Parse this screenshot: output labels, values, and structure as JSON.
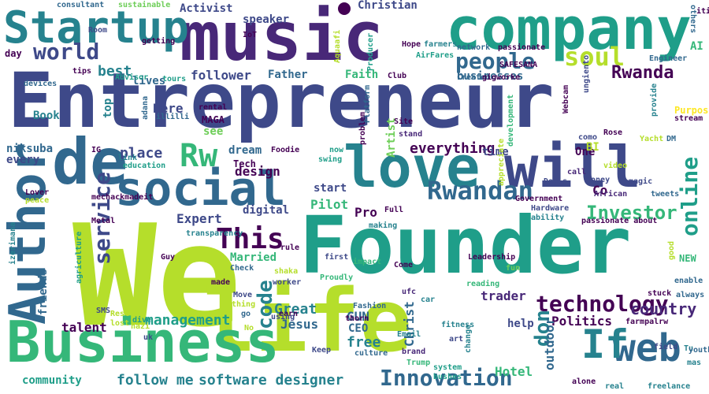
{
  "palette": {
    "dark_purple": "#440154",
    "purple": "#482878",
    "indigo": "#3e4989",
    "blue": "#31688e",
    "teal": "#26828e",
    "teal_green": "#1f9e89",
    "green": "#35b779",
    "light_green": "#6ece58",
    "lime": "#b5de2b",
    "yellow": "#fde725"
  },
  "words": [
    {
      "text": "Entrepreneur",
      "color": "#3e4989"
    },
    {
      "text": "We",
      "color": "#b5de2b"
    },
    {
      "text": "Founder",
      "color": "#1f9e89"
    },
    {
      "text": "music",
      "color": "#482878"
    },
    {
      "text": "company",
      "color": "#1f9e89"
    },
    {
      "text": "life",
      "color": "#b5de2b"
    },
    {
      "text": "Business",
      "color": "#35b779"
    },
    {
      "text": "love",
      "color": "#26828e"
    },
    {
      "text": "will",
      "color": "#3e4989"
    },
    {
      "text": "social",
      "color": "#31688e"
    },
    {
      "text": "de",
      "color": "#31688e"
    },
    {
      "text": "Author",
      "color": "#31688e"
    },
    {
      "text": "Startup",
      "color": "#26828e"
    },
    {
      "text": "web",
      "color": "#31688e"
    },
    {
      "text": "If",
      "color": "#26828e"
    },
    {
      "text": "technology",
      "color": "#440154"
    },
    {
      "text": "Rwandan",
      "color": "#31688e"
    },
    {
      "text": "Innovation",
      "color": "#31688e"
    },
    {
      "text": "Rw",
      "color": "#35b779"
    },
    {
      "text": "This",
      "color": "#440154"
    },
    {
      "text": "people",
      "color": "#31688e"
    },
    {
      "text": "soul",
      "color": "#b5de2b"
    },
    {
      "text": "world",
      "color": "#3e4989"
    },
    {
      "text": "online",
      "color": "#1f9e89"
    },
    {
      "text": "service",
      "color": "#3e4989"
    },
    {
      "text": "code",
      "color": "#26828e"
    },
    {
      "text": "Investor",
      "color": "#35b779"
    },
    {
      "text": "Rwanda",
      "color": "#440154"
    },
    {
      "text": "don",
      "color": "#26828e"
    },
    {
      "text": "management",
      "color": "#1f9e89"
    },
    {
      "text": "country",
      "color": "#482878"
    },
    {
      "text": "follow me",
      "color": "#26828e"
    },
    {
      "text": "software designer",
      "color": "#26828e"
    },
    {
      "text": "Jesus",
      "color": "#31688e"
    },
    {
      "text": "Great",
      "color": "#26828e"
    },
    {
      "text": "everything",
      "color": "#440154"
    },
    {
      "text": "Politics",
      "color": "#440154"
    },
    {
      "text": "Christ",
      "color": "#31688e"
    },
    {
      "text": "free",
      "color": "#26828e"
    },
    {
      "text": "trader",
      "color": "#482878"
    },
    {
      "text": "outdoor",
      "color": "#31688e"
    },
    {
      "text": "Hotel",
      "color": "#35b779"
    },
    {
      "text": "community",
      "color": "#1f9e89"
    },
    {
      "text": "talent",
      "color": "#440154"
    },
    {
      "text": "friends",
      "color": "#31688e"
    },
    {
      "text": "Married",
      "color": "#35b779"
    },
    {
      "text": "Pro",
      "color": "#440154"
    },
    {
      "text": "Expert",
      "color": "#3e4989"
    },
    {
      "text": "digital",
      "color": "#3e4989"
    },
    {
      "text": "GUN",
      "color": "#31688e"
    },
    {
      "text": "CEO",
      "color": "#31688e"
    },
    {
      "text": "Pilot",
      "color": "#35b779"
    },
    {
      "text": "start",
      "color": "#3e4989"
    },
    {
      "text": "design",
      "color": "#440154"
    },
    {
      "text": "dream",
      "color": "#31688e"
    },
    {
      "text": "Tech",
      "color": "#440154"
    },
    {
      "text": "place",
      "color": "#3e4989"
    },
    {
      "text": "niksuba",
      "color": "#31688e"
    },
    {
      "text": "every",
      "color": "#3e4989"
    },
    {
      "text": "Book",
      "color": "#26828e"
    },
    {
      "text": "best",
      "color": "#26828e"
    },
    {
      "text": "top",
      "color": "#26828e"
    },
    {
      "text": "Here",
      "color": "#3e4989"
    },
    {
      "text": "MAGA",
      "color": "#440154"
    },
    {
      "text": "see",
      "color": "#6ece58"
    },
    {
      "text": "follower",
      "color": "#3e4989"
    },
    {
      "text": "Father",
      "color": "#31688e"
    },
    {
      "text": "Faith",
      "color": "#35b779"
    },
    {
      "text": "businesses",
      "color": "#31688e"
    },
    {
      "text": "lives",
      "color": "#31688e"
    },
    {
      "text": "Artist",
      "color": "#6ece58"
    },
    {
      "text": "time",
      "color": "#3e4989"
    },
    {
      "text": "One",
      "color": "#440154"
    },
    {
      "text": "BI",
      "color": "#b5de2b"
    },
    {
      "text": "speaker",
      "color": "#3e4989"
    },
    {
      "text": "Activist",
      "color": "#3e4989"
    },
    {
      "text": "Christian",
      "color": "#3e4989"
    },
    {
      "text": "Co",
      "color": "#440154"
    },
    {
      "text": "AI",
      "color": "#35b779"
    },
    {
      "text": "day",
      "color": "#440154"
    },
    {
      "text": "tips",
      "color": "#440154"
    },
    {
      "text": "help",
      "color": "#3e4989"
    },
    {
      "text": "fitness",
      "color": "#26828e"
    },
    {
      "text": "Email",
      "color": "#26828e"
    },
    {
      "text": "brand",
      "color": "#482878"
    },
    {
      "text": "culture",
      "color": "#31688e"
    },
    {
      "text": "Keep",
      "color": "#3e4989"
    },
    {
      "text": "change",
      "color": "#26828e"
    },
    {
      "text": "system",
      "color": "#1f9e89"
    },
    {
      "text": "bushes",
      "color": "#1f9e89"
    },
    {
      "text": "Trump",
      "color": "#35b779"
    },
    {
      "text": "art",
      "color": "#3e4989"
    },
    {
      "text": "alone",
      "color": "#440154"
    },
    {
      "text": "real",
      "color": "#26828e"
    },
    {
      "text": "freelance",
      "color": "#26828e"
    },
    {
      "text": "field",
      "color": "#3e4989"
    },
    {
      "text": "Tu",
      "color": "#26828e"
    },
    {
      "text": "youth",
      "color": "#31688e"
    },
    {
      "text": "mas",
      "color": "#26828e"
    },
    {
      "text": "stuck",
      "color": "#440154"
    },
    {
      "text": "always",
      "color": "#31688e"
    },
    {
      "text": "enable",
      "color": "#31688e"
    },
    {
      "text": "NEW",
      "color": "#35b779"
    },
    {
      "text": "good",
      "color": "#b5de2b"
    },
    {
      "text": "Leadership",
      "color": "#440154"
    },
    {
      "text": "impact",
      "color": "#35b779"
    },
    {
      "text": "Come",
      "color": "#440154"
    },
    {
      "text": "fun",
      "color": "#6ece58"
    },
    {
      "text": "reading",
      "color": "#35b779"
    },
    {
      "text": "ufc",
      "color": "#482878"
    },
    {
      "text": "car",
      "color": "#26828e"
    },
    {
      "text": "Fashion",
      "color": "#31688e"
    },
    {
      "text": "thorn",
      "color": "#440154"
    },
    {
      "text": "Proudly",
      "color": "#35b779"
    },
    {
      "text": "first",
      "color": "#3e4989"
    },
    {
      "text": "making",
      "color": "#26828e"
    },
    {
      "text": "Full",
      "color": "#440154"
    },
    {
      "text": "rule",
      "color": "#440154"
    },
    {
      "text": "rental",
      "color": "#440154"
    },
    {
      "text": "Site",
      "color": "#440154"
    },
    {
      "text": "stand",
      "color": "#482878"
    },
    {
      "text": "Platform",
      "color": "#31688e"
    },
    {
      "text": "problem",
      "color": "#440154"
    },
    {
      "text": "now",
      "color": "#1f9e89"
    },
    {
      "text": "swing",
      "color": "#1f9e89"
    },
    {
      "text": "Foodie",
      "color": "#440154"
    },
    {
      "text": "development",
      "color": "#35b779"
    },
    {
      "text": "appreciate",
      "color": "#b5de2b"
    },
    {
      "text": "Webcam",
      "color": "#440154"
    },
    {
      "text": "Government",
      "color": "#440154"
    },
    {
      "text": "Hardware",
      "color": "#3e4989"
    },
    {
      "text": "ability",
      "color": "#26828e"
    },
    {
      "text": "passionate about",
      "color": "#440154"
    },
    {
      "text": "African",
      "color": "#482878"
    },
    {
      "text": "tweets",
      "color": "#31688e"
    },
    {
      "text": "magic",
      "color": "#3e4989"
    },
    {
      "text": "video",
      "color": "#b5de2b"
    },
    {
      "text": "Money",
      "color": "#3e4989"
    },
    {
      "text": "Deals",
      "color": "#3e4989"
    },
    {
      "text": "call",
      "color": "#482878"
    },
    {
      "text": "como",
      "color": "#3e4989"
    },
    {
      "text": "Rose",
      "color": "#440154"
    },
    {
      "text": "Yacht",
      "color": "#b5de2b"
    },
    {
      "text": "DM",
      "color": "#31688e"
    },
    {
      "text": "Purpose",
      "color": "#fde725"
    },
    {
      "text": "stream",
      "color": "#440154"
    },
    {
      "text": "provide",
      "color": "#26828e"
    },
    {
      "text": "ungiento",
      "color": "#3e4989"
    },
    {
      "text": "Engineer",
      "color": "#31688e"
    },
    {
      "text": "SAFESANA",
      "color": "#440154"
    },
    {
      "text": "Created",
      "color": "#31688e"
    },
    {
      "text": "gigworke",
      "color": "#440154"
    },
    {
      "text": "passionate",
      "color": "#440154"
    },
    {
      "text": "network",
      "color": "#31688e"
    },
    {
      "text": "Hope",
      "color": "#440154"
    },
    {
      "text": "farmers",
      "color": "#26828e"
    },
    {
      "text": "AirFares",
      "color": "#1f9e89"
    },
    {
      "text": "Club",
      "color": "#440154"
    },
    {
      "text": "Producer",
      "color": "#1f9e89"
    },
    {
      "text": "Aquaafi",
      "color": "#b5de2b"
    },
    {
      "text": "IoT",
      "color": "#440154"
    },
    {
      "text": "sustainable",
      "color": "#6ece58"
    },
    {
      "text": "consultant",
      "color": "#31688e"
    },
    {
      "text": "others",
      "color": "#31688e"
    },
    {
      "text": "ities",
      "color": "#440154"
    },
    {
      "text": "getting",
      "color": "#440154"
    },
    {
      "text": "Room",
      "color": "#3e4989"
    },
    {
      "text": "Advisor",
      "color": "#1f9e89"
    },
    {
      "text": "tours",
      "color": "#1f9e89"
    },
    {
      "text": "devices",
      "color": "#31688e"
    },
    {
      "text": "IG",
      "color": "#440154"
    },
    {
      "text": "link",
      "color": "#26828e"
    },
    {
      "text": "education",
      "color": "#1f9e89"
    },
    {
      "text": "adana",
      "color": "#31688e"
    },
    {
      "text": "illilli",
      "color": "#31688e"
    },
    {
      "text": "Lover",
      "color": "#440154"
    },
    {
      "text": "peace",
      "color": "#b5de2b"
    },
    {
      "text": "mechackmadeit",
      "color": "#440154"
    },
    {
      "text": "Metal",
      "color": "#440154"
    },
    {
      "text": "transparency",
      "color": "#26828e"
    },
    {
      "text": "Guy",
      "color": "#440154"
    },
    {
      "text": "izerimana",
      "color": "#26828e"
    },
    {
      "text": "agriculture",
      "color": "#1f9e89"
    },
    {
      "text": "made",
      "color": "#440154"
    },
    {
      "text": "Check",
      "color": "#31688e"
    },
    {
      "text": "shaka",
      "color": "#b5de2b"
    },
    {
      "text": "worker",
      "color": "#3e4989"
    },
    {
      "text": "Move",
      "color": "#3e4989"
    },
    {
      "text": "thing",
      "color": "#b5de2b"
    },
    {
      "text": "go",
      "color": "#31688e"
    },
    {
      "text": "earn",
      "color": "#440154"
    },
    {
      "text": "using",
      "color": "#3e4989"
    },
    {
      "text": "No",
      "color": "#b5de2b"
    },
    {
      "text": "SMS",
      "color": "#3e4989"
    },
    {
      "text": "Rest",
      "color": "#b5de2b"
    },
    {
      "text": "lost",
      "color": "#b5de2b"
    },
    {
      "text": "dive",
      "color": "#1f9e89"
    },
    {
      "text": "nazi",
      "color": "#b5de2b"
    },
    {
      "text": "uk",
      "color": "#3e4989"
    },
    {
      "text": "farmpalrw",
      "color": "#440154"
    }
  ]
}
